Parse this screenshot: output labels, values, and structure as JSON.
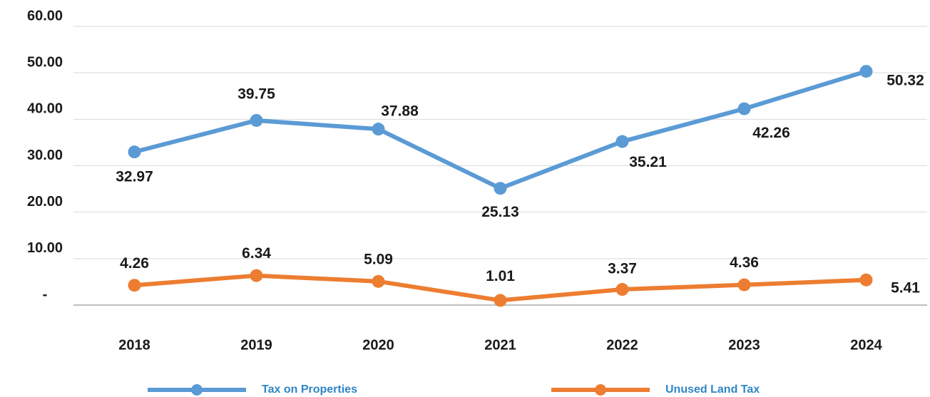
{
  "chart_data": {
    "type": "line",
    "categories": [
      "2018",
      "2019",
      "2020",
      "2021",
      "2022",
      "2023",
      "2024"
    ],
    "series": [
      {
        "name": "Tax on Properties",
        "color": "#5b9bd5",
        "values": [
          32.97,
          39.75,
          37.88,
          25.13,
          35.21,
          42.26,
          50.32
        ]
      },
      {
        "name": "Unused Land Tax",
        "color": "#ed7d31",
        "values": [
          4.26,
          6.34,
          5.09,
          1.01,
          3.37,
          4.36,
          5.41
        ]
      }
    ],
    "ylim": [
      0,
      60
    ],
    "yticks": [
      {
        "value": 0,
        "label": "-"
      },
      {
        "value": 10,
        "label": "10.00"
      },
      {
        "value": 20,
        "label": "20.00"
      },
      {
        "value": 30,
        "label": "30.00"
      },
      {
        "value": 40,
        "label": "40.00"
      },
      {
        "value": 50,
        "label": "50.00"
      },
      {
        "value": 60,
        "label": "60.00"
      }
    ],
    "grid": true,
    "legend": "bottom"
  }
}
